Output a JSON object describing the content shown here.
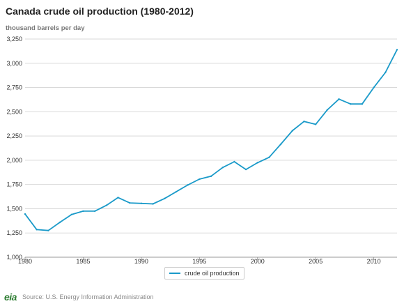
{
  "colors": {
    "line": "#1a9ac9",
    "grid": "#d9d9d9",
    "axis": "#999999"
  },
  "chart_data": {
    "type": "line",
    "title": "Canada crude oil production (1980-2012)",
    "ylabel": "thousand barrels per day",
    "xlabel": "",
    "ylim": [
      1000,
      3250
    ],
    "xlim": [
      1980,
      2012
    ],
    "yticks": [
      "1,000",
      "1,250",
      "1,500",
      "1,750",
      "2,000",
      "2,250",
      "2,500",
      "2,750",
      "3,000",
      "3,250"
    ],
    "yticks_values": [
      1000,
      1250,
      1500,
      1750,
      2000,
      2250,
      2500,
      2750,
      3000,
      3250
    ],
    "xticks": [
      "1980",
      "1985",
      "1990",
      "1995",
      "2000",
      "2005",
      "2010"
    ],
    "xticks_values": [
      1980,
      1985,
      1990,
      1995,
      2000,
      2005,
      2010
    ],
    "grid": true,
    "legend_position": "bottom-center",
    "x": [
      1980,
      1981,
      1982,
      1983,
      1984,
      1985,
      1986,
      1987,
      1988,
      1989,
      1990,
      1991,
      1992,
      1993,
      1994,
      1995,
      1996,
      1997,
      1998,
      1999,
      2000,
      2001,
      2002,
      2003,
      2004,
      2005,
      2006,
      2007,
      2008,
      2009,
      2010,
      2011,
      2012
    ],
    "series": [
      {
        "name": "crude oil production",
        "values": [
          1445,
          1285,
          1275,
          1360,
          1440,
          1475,
          1475,
          1535,
          1615,
          1560,
          1555,
          1550,
          1605,
          1675,
          1745,
          1805,
          1835,
          1925,
          1985,
          1905,
          1975,
          2030,
          2165,
          2305,
          2400,
          2370,
          2520,
          2630,
          2580,
          2580,
          2750,
          2905,
          3140
        ]
      }
    ]
  },
  "footer": {
    "source": "Source: U.S. Energy Information Administration",
    "logo": "eia"
  }
}
